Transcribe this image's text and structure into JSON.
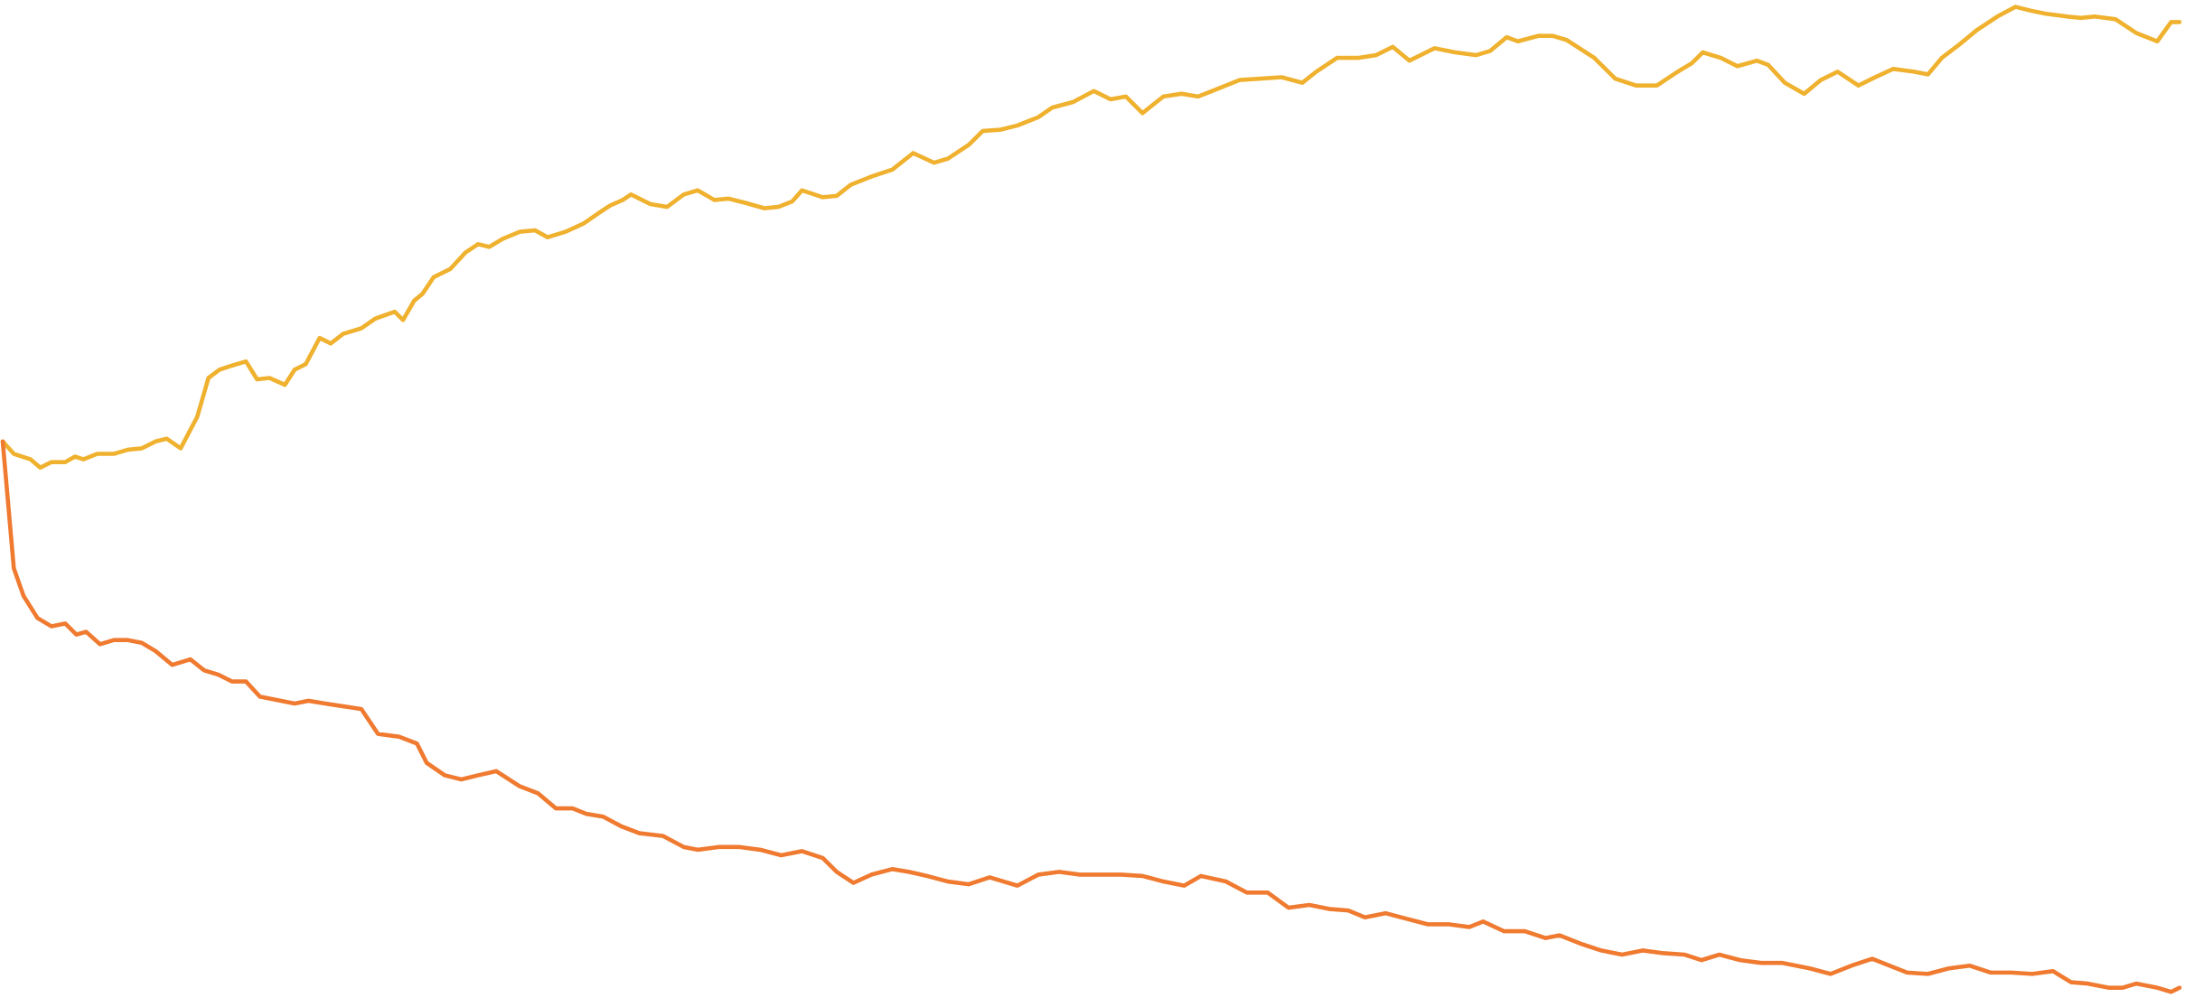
{
  "chart_data": {
    "type": "line",
    "xlim": [
      0,
      1568
    ],
    "ylim": [
      0,
      726
    ],
    "series": [
      {
        "color": "#efb12e",
        "x": [
          0,
          8,
          20,
          27,
          35,
          45,
          52,
          58,
          68,
          80,
          90,
          100,
          110,
          118,
          128,
          140,
          148,
          156,
          165,
          175,
          183,
          192,
          203,
          210,
          218,
          228,
          236,
          245,
          258,
          268,
          282,
          288,
          296,
          302,
          310,
          322,
          333,
          342,
          350,
          360,
          372,
          383,
          392,
          405,
          418,
          428,
          437,
          446,
          452,
          466,
          478,
          490,
          500,
          512,
          522,
          534,
          548,
          558,
          568,
          575,
          590,
          600,
          610,
          625,
          640,
          655,
          670,
          680,
          695,
          705,
          718,
          730,
          745,
          755,
          770,
          785,
          797,
          808,
          820,
          835,
          848,
          860,
          875,
          890,
          905,
          920,
          935,
          945,
          960,
          975,
          988,
          1000,
          1012,
          1020,
          1030,
          1045,
          1060,
          1070,
          1082,
          1090,
          1105,
          1115,
          1125,
          1145,
          1160,
          1175,
          1190,
          1205,
          1215,
          1223,
          1236,
          1248,
          1262,
          1270,
          1282,
          1296,
          1308,
          1320,
          1335,
          1345,
          1360,
          1375,
          1385,
          1395,
          1408,
          1420,
          1435,
          1448,
          1460,
          1470,
          1485,
          1495,
          1505,
          1520,
          1535,
          1550,
          1560,
          1566
        ],
        "values": [
          408,
          399,
          395,
          389,
          393,
          393,
          397,
          395,
          399,
          399,
          402,
          403,
          408,
          410,
          403,
          426,
          454,
          460,
          463,
          466,
          453,
          454,
          449,
          460,
          464,
          483,
          479,
          486,
          490,
          497,
          502,
          496,
          510,
          515,
          527,
          533,
          545,
          551,
          549,
          555,
          560,
          561,
          556,
          560,
          566,
          573,
          579,
          583,
          587,
          580,
          578,
          587,
          590,
          583,
          584,
          581,
          577,
          578,
          582,
          590,
          585,
          586,
          594,
          600,
          605,
          617,
          610,
          613,
          623,
          633,
          634,
          637,
          643,
          650,
          654,
          662,
          656,
          658,
          646,
          658,
          660,
          658,
          664,
          670,
          671,
          672,
          668,
          676,
          686,
          686,
          688,
          694,
          684,
          688,
          693,
          690,
          688,
          691,
          701,
          698,
          702,
          702,
          699,
          686,
          671,
          666,
          666,
          676,
          682,
          690,
          686,
          680,
          684,
          681,
          668,
          660,
          670,
          676,
          666,
          671,
          678,
          676,
          674,
          686,
          696,
          706,
          716,
          723,
          720,
          718,
          716,
          715,
          716,
          714,
          704,
          698,
          712,
          712
        ]
      },
      {
        "color": "#ef7a30",
        "x": [
          0,
          8,
          15,
          25,
          35,
          45,
          53,
          60,
          70,
          80,
          90,
          100,
          110,
          122,
          135,
          145,
          155,
          165,
          175,
          185,
          195,
          210,
          220,
          232,
          245,
          258,
          270,
          285,
          298,
          305,
          318,
          330,
          342,
          355,
          372,
          385,
          398,
          410,
          420,
          432,
          445,
          458,
          475,
          490,
          500,
          515,
          530,
          545,
          560,
          575,
          590,
          600,
          612,
          625,
          640,
          652,
          665,
          680,
          695,
          710,
          730,
          745,
          760,
          775,
          790,
          805,
          820,
          835,
          850,
          862,
          880,
          895,
          910,
          925,
          940,
          955,
          968,
          980,
          995,
          1010,
          1025,
          1040,
          1055,
          1065,
          1080,
          1095,
          1110,
          1120,
          1135,
          1150,
          1165,
          1180,
          1195,
          1210,
          1222,
          1235,
          1250,
          1265,
          1280,
          1300,
          1315,
          1330,
          1345,
          1355,
          1370,
          1385,
          1400,
          1415,
          1430,
          1445,
          1460,
          1475,
          1488,
          1500,
          1515,
          1525,
          1535,
          1550,
          1560,
          1566
        ],
        "values": [
          408,
          316,
          296,
          280,
          274,
          276,
          268,
          270,
          261,
          264,
          264,
          262,
          256,
          246,
          250,
          242,
          239,
          234,
          234,
          223,
          221,
          218,
          220,
          218,
          216,
          214,
          196,
          194,
          189,
          175,
          166,
          163,
          166,
          169,
          158,
          153,
          142,
          142,
          138,
          136,
          129,
          124,
          122,
          114,
          112,
          114,
          114,
          112,
          108,
          111,
          106,
          96,
          88,
          94,
          98,
          96,
          93,
          89,
          87,
          92,
          86,
          94,
          96,
          94,
          94,
          94,
          93,
          89,
          86,
          93,
          89,
          81,
          81,
          70,
          72,
          69,
          68,
          63,
          66,
          62,
          58,
          58,
          56,
          60,
          53,
          53,
          48,
          50,
          44,
          39,
          36,
          39,
          37,
          36,
          32,
          36,
          32,
          30,
          30,
          26,
          22,
          28,
          33,
          29,
          23,
          22,
          26,
          28,
          23,
          23,
          22,
          24,
          16,
          15,
          12,
          12,
          15,
          12,
          9,
          12
        ]
      }
    ]
  }
}
